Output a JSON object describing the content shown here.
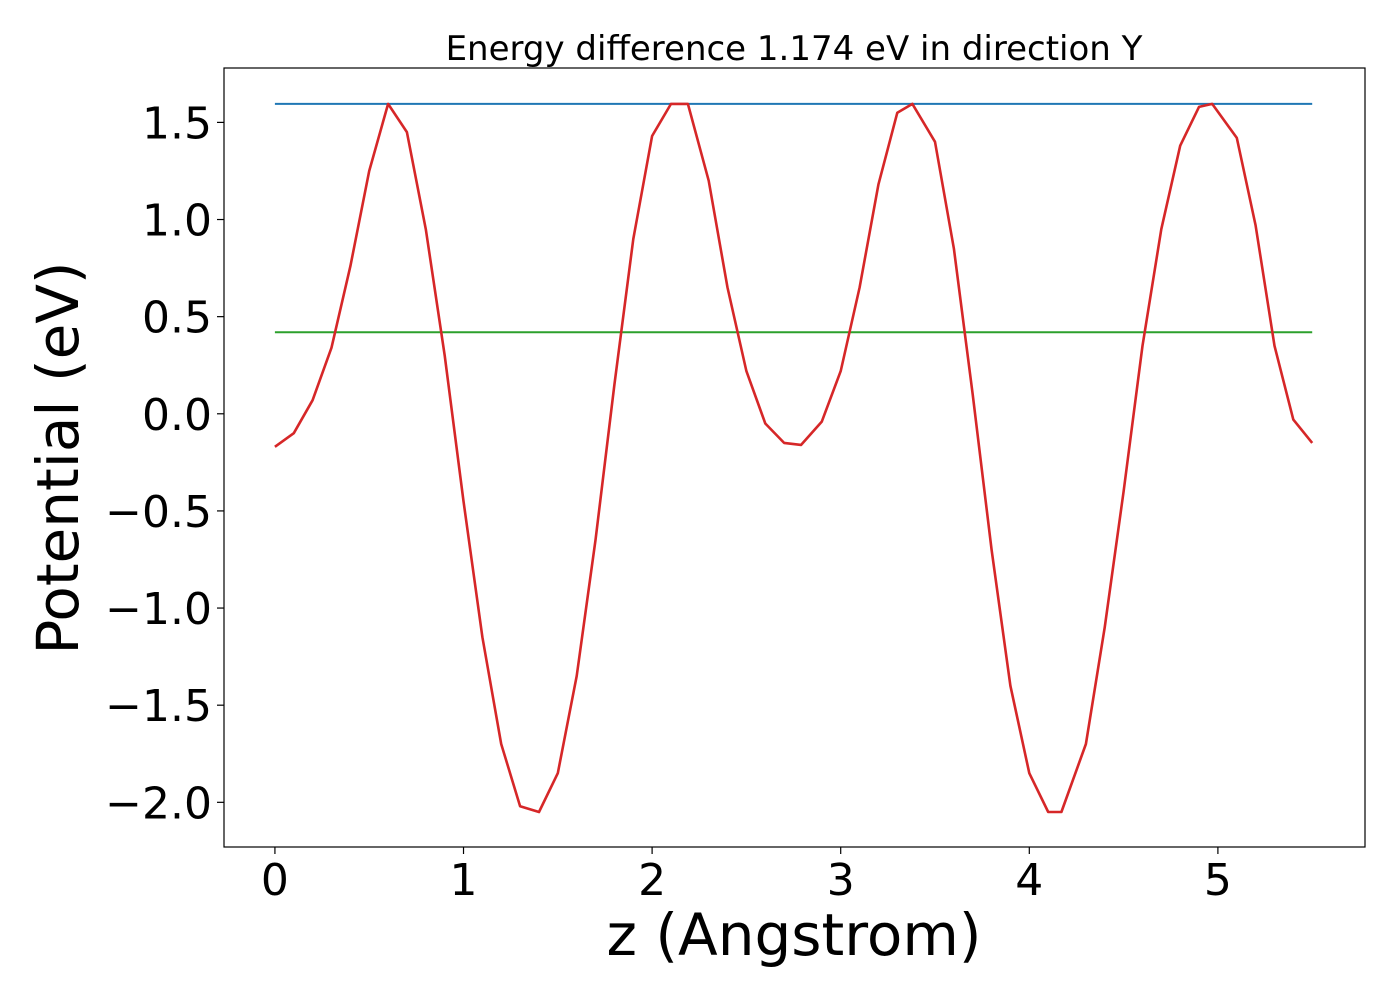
{
  "chart_data": {
    "type": "line",
    "title": "Energy difference 1.174 eV in direction Y",
    "xlabel": "z (Angstrom)",
    "ylabel": "Potential (eV)",
    "xlim": [
      -0.27,
      5.78
    ],
    "ylim": [
      -2.23,
      1.78
    ],
    "xticks": [
      0,
      1,
      2,
      3,
      4,
      5
    ],
    "xtick_labels": [
      "0",
      "1",
      "2",
      "3",
      "4",
      "5"
    ],
    "yticks": [
      -2.0,
      -1.5,
      -1.0,
      -0.5,
      0.0,
      0.5,
      1.0,
      1.5
    ],
    "ytick_labels": [
      "−2.0",
      "−1.5",
      "−1.0",
      "−0.5",
      "0.0",
      "0.5",
      "1.0",
      "1.5"
    ],
    "grid": false,
    "series": [
      {
        "color": "#1f77b4",
        "x": [
          0.0,
          5.5
        ],
        "y": [
          1.595,
          1.595
        ]
      },
      {
        "color": "#2ca02c",
        "x": [
          0.0,
          5.5
        ],
        "y": [
          0.42,
          0.42
        ]
      },
      {
        "color": "#d62728",
        "x": [
          0.0,
          0.1,
          0.2,
          0.3,
          0.4,
          0.5,
          0.6,
          0.7,
          0.8,
          0.9,
          1.0,
          1.1,
          1.2,
          1.3,
          1.4,
          1.5,
          1.6,
          1.7,
          1.8,
          1.9,
          2.0,
          2.1,
          2.19,
          2.3,
          2.4,
          2.5,
          2.6,
          2.7,
          2.79,
          2.9,
          3.0,
          3.1,
          3.2,
          3.3,
          3.38,
          3.5,
          3.6,
          3.7,
          3.8,
          3.9,
          4.0,
          4.1,
          4.17,
          4.3,
          4.4,
          4.5,
          4.6,
          4.7,
          4.8,
          4.9,
          4.97,
          5.1,
          5.2,
          5.3,
          5.4,
          5.5
        ],
        "y": [
          -0.17,
          -0.1,
          0.07,
          0.34,
          0.76,
          1.25,
          1.595,
          1.45,
          0.95,
          0.3,
          -0.45,
          -1.15,
          -1.7,
          -2.02,
          -2.05,
          -1.85,
          -1.35,
          -0.65,
          0.15,
          0.9,
          1.43,
          1.595,
          1.595,
          1.2,
          0.65,
          0.22,
          -0.05,
          -0.15,
          -0.16,
          -0.04,
          0.22,
          0.65,
          1.18,
          1.55,
          1.595,
          1.4,
          0.85,
          0.1,
          -0.7,
          -1.4,
          -1.85,
          -2.05,
          -2.05,
          -1.7,
          -1.1,
          -0.4,
          0.35,
          0.95,
          1.38,
          1.58,
          1.595,
          1.42,
          0.97,
          0.35,
          -0.03,
          -0.15
        ]
      }
    ]
  }
}
